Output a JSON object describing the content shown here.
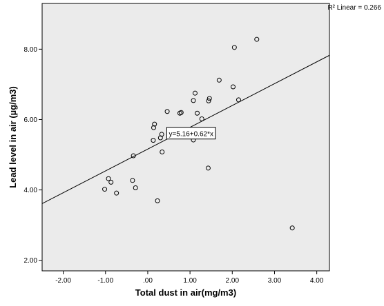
{
  "chart_data": {
    "type": "scatter",
    "title": "",
    "xlabel": "Total dust in air(mg/m3)",
    "ylabel": "Lead level in air (µg/m3)",
    "xlim": [
      -2.5,
      4.3
    ],
    "ylim": [
      1.7,
      9.3
    ],
    "x_ticks": [
      -2.0,
      -1.0,
      0.0,
      1.0,
      2.0,
      3.0,
      4.0
    ],
    "x_tick_labels": [
      "-2.00",
      "-1.00",
      ".00",
      "1.00",
      "2.00",
      "3.00",
      "4.00"
    ],
    "y_ticks": [
      2.0,
      4.0,
      6.0,
      8.0
    ],
    "y_tick_labels": [
      "2.00",
      "4.00",
      "6.00",
      "8.00"
    ],
    "grid": false,
    "points": [
      {
        "x": -1.02,
        "y": 4.02
      },
      {
        "x": -0.93,
        "y": 4.32
      },
      {
        "x": -0.87,
        "y": 4.22
      },
      {
        "x": -0.74,
        "y": 3.91
      },
      {
        "x": -0.36,
        "y": 4.27
      },
      {
        "x": -0.34,
        "y": 4.97
      },
      {
        "x": -0.29,
        "y": 4.06
      },
      {
        "x": 0.13,
        "y": 5.41
      },
      {
        "x": 0.14,
        "y": 5.77
      },
      {
        "x": 0.16,
        "y": 5.87
      },
      {
        "x": 0.23,
        "y": 3.69
      },
      {
        "x": 0.3,
        "y": 5.48
      },
      {
        "x": 0.33,
        "y": 5.58
      },
      {
        "x": 0.34,
        "y": 5.08
      },
      {
        "x": 0.46,
        "y": 6.23
      },
      {
        "x": 0.56,
        "y": 5.54
      },
      {
        "x": 0.6,
        "y": 5.66
      },
      {
        "x": 0.76,
        "y": 6.18
      },
      {
        "x": 0.79,
        "y": 6.2
      },
      {
        "x": 1.08,
        "y": 5.42
      },
      {
        "x": 1.08,
        "y": 6.54
      },
      {
        "x": 1.12,
        "y": 6.75
      },
      {
        "x": 1.17,
        "y": 6.18
      },
      {
        "x": 1.28,
        "y": 6.02
      },
      {
        "x": 1.43,
        "y": 4.62
      },
      {
        "x": 1.44,
        "y": 6.53
      },
      {
        "x": 1.46,
        "y": 6.6
      },
      {
        "x": 1.69,
        "y": 7.12
      },
      {
        "x": 2.02,
        "y": 6.93
      },
      {
        "x": 2.05,
        "y": 8.05
      },
      {
        "x": 2.15,
        "y": 6.56
      },
      {
        "x": 2.58,
        "y": 8.28
      },
      {
        "x": 3.42,
        "y": 2.92
      }
    ],
    "fit_line": {
      "intercept": 5.16,
      "slope": 0.62
    },
    "fit_equation_label": "y=5.16+0.62*x",
    "fit_equation_position": {
      "x": 0.45,
      "y": 5.78
    },
    "r2_label": "R² Linear = 0.266",
    "colors": {
      "plot_background": "#ebebeb",
      "marker": "#000000",
      "line": "#000000"
    }
  }
}
